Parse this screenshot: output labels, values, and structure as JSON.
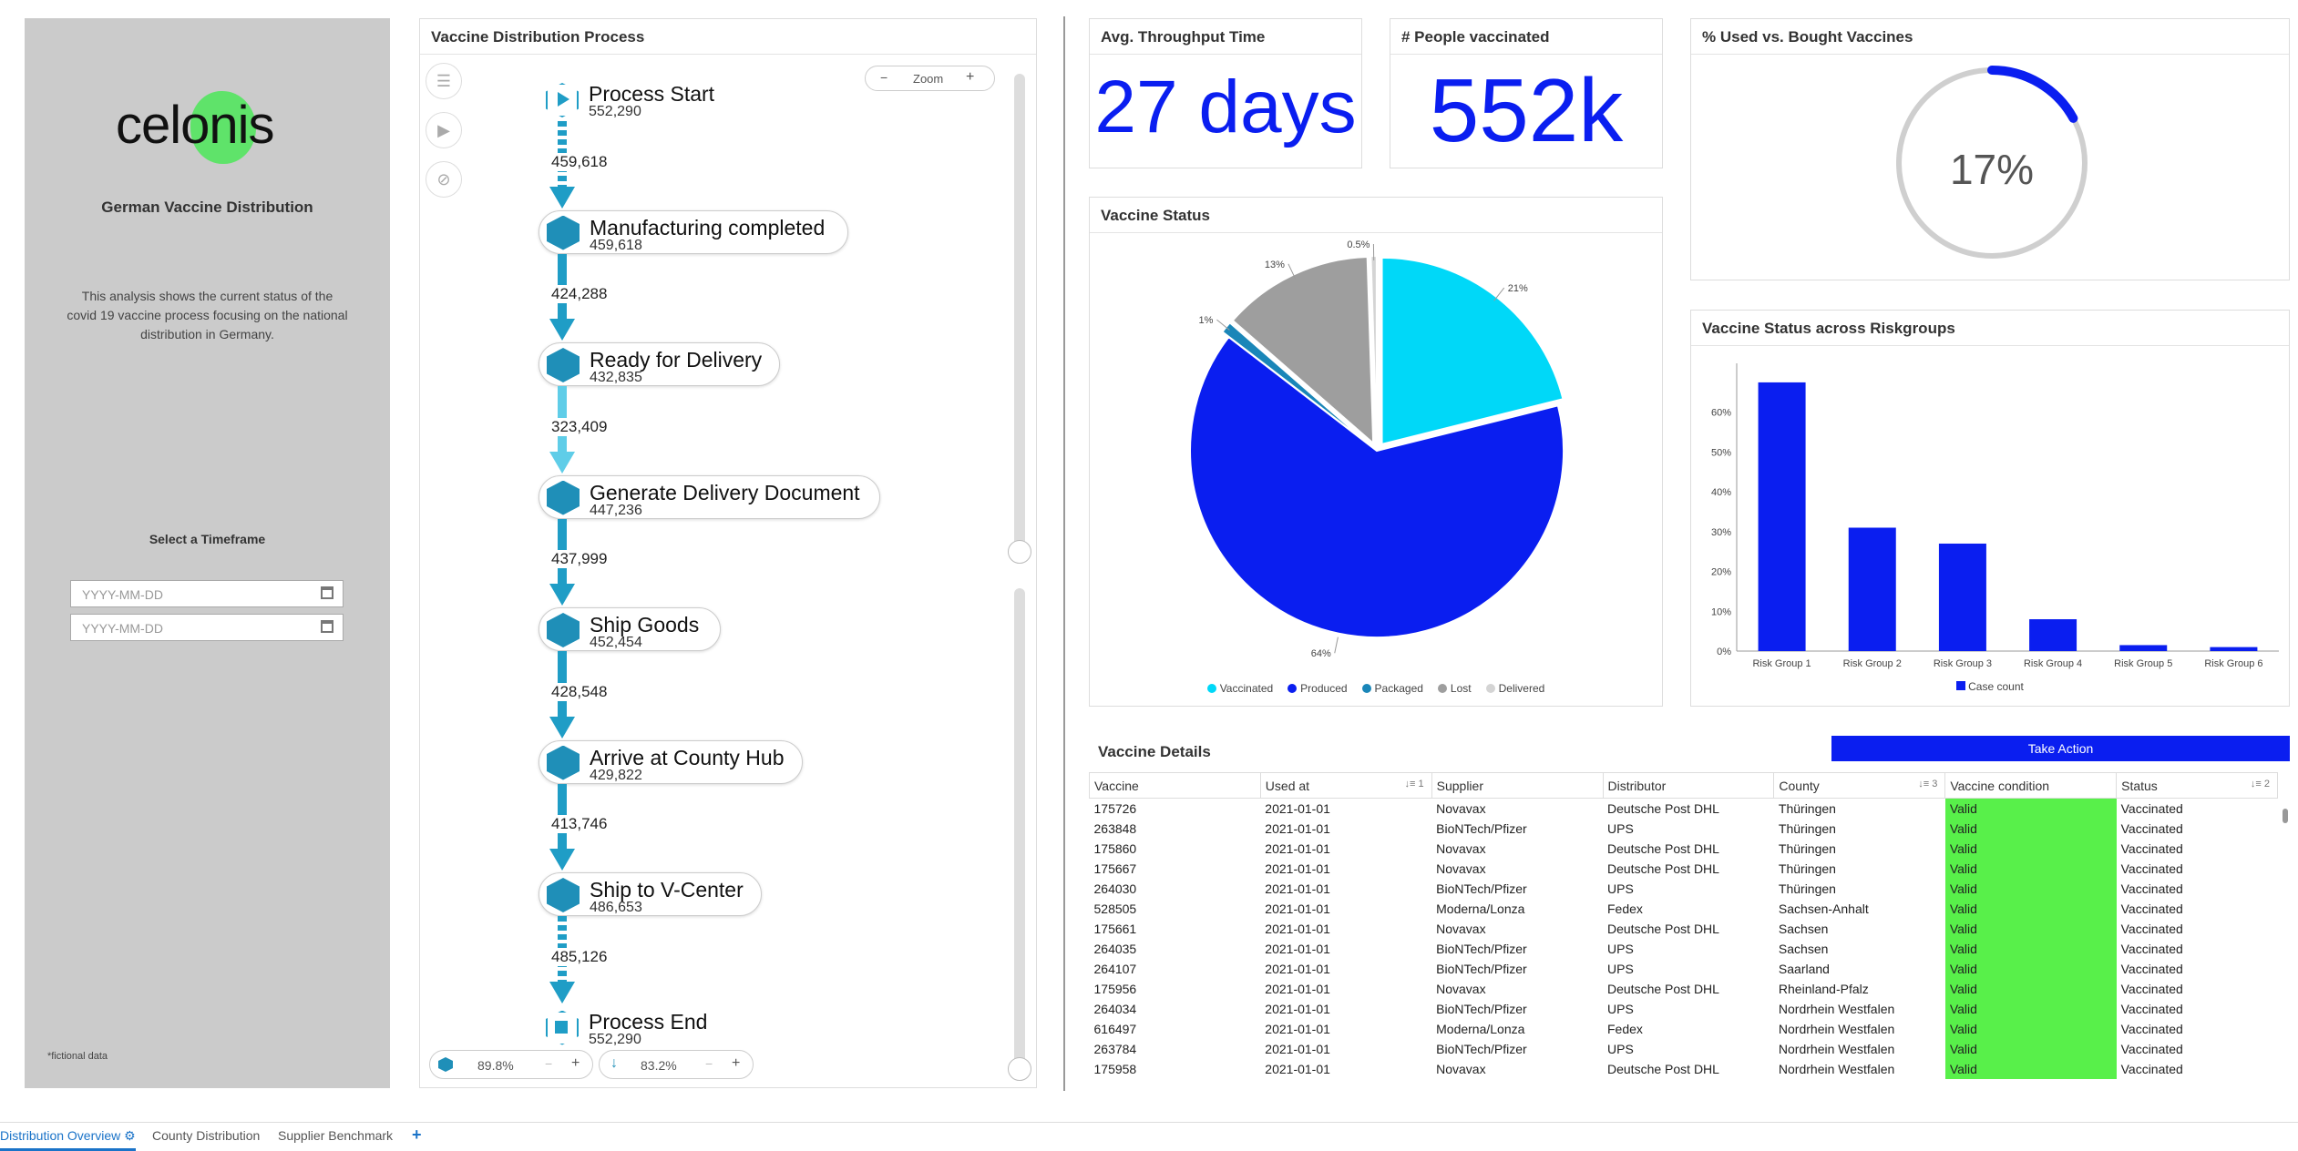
{
  "sidebar": {
    "logo_text": "celonis",
    "title": "German Vaccine Distribution",
    "description": "This analysis shows the current status of the covid 19 vaccine process focusing on the national distribution in Germany.",
    "timeframe_label": "Select a Timeframe",
    "date_from_placeholder": "YYYY-MM-DD",
    "date_to_placeholder": "YYYY-MM-DD",
    "footnote": "*fictional data"
  },
  "process": {
    "title": "Vaccine Distribution Process",
    "zoom_label": "Zoom",
    "zoom_minus": "−",
    "zoom_plus": "+",
    "nodes": [
      {
        "label": "Process Start",
        "count": "552,290"
      },
      {
        "label": "Manufacturing completed",
        "count": "459,618"
      },
      {
        "label": "Ready for Delivery",
        "count": "432,835"
      },
      {
        "label": "Generate Delivery Document",
        "count": "447,236"
      },
      {
        "label": "Ship Goods",
        "count": "452,454"
      },
      {
        "label": "Arrive at County Hub",
        "count": "429,822"
      },
      {
        "label": "Ship to V-Center",
        "count": "486,653"
      },
      {
        "label": "Process End",
        "count": "552,290"
      }
    ],
    "edges": [
      "459,618",
      "424,288",
      "323,409",
      "437,999",
      "428,548",
      "413,746",
      "485,126"
    ],
    "activity_slider": "89.8%",
    "connection_slider": "83.2%"
  },
  "kpis": {
    "throughput_title": "Avg. Throughput Time",
    "throughput_value": "27 days",
    "people_title": "# People vaccinated",
    "people_value": "552k",
    "used_title": "% Used vs. Bought Vaccines",
    "used_value": "17%",
    "used_fraction": 0.17
  },
  "vaccine_status": {
    "title": "Vaccine Status",
    "legend": [
      "Vaccinated",
      "Produced",
      "Packaged",
      "Lost",
      "Delivered"
    ],
    "colors": [
      "#00d8f8",
      "#0a1ef0",
      "#1a86b8",
      "#9e9e9e",
      "#d4d4d4"
    ]
  },
  "risk": {
    "title": "Vaccine Status across Riskgroups",
    "legend": "Case count",
    "bar_color": "#0a1ef0"
  },
  "chart_data": [
    {
      "type": "pie",
      "title": "Vaccine Status",
      "labels": [
        "Vaccinated",
        "Produced",
        "Packaged",
        "Lost",
        "Delivered"
      ],
      "values": [
        21,
        64,
        1,
        13,
        0.5
      ],
      "value_labels": [
        "21%",
        "64%",
        "1%",
        "13%",
        "0.5%"
      ]
    },
    {
      "type": "bar",
      "title": "Vaccine Status across Riskgroups",
      "categories": [
        "Risk Group 1",
        "Risk Group 2",
        "Risk Group 3",
        "Risk Group 4",
        "Risk Group 5",
        "Risk Group 6"
      ],
      "series": [
        {
          "name": "Case count",
          "values": [
            67.5,
            31,
            27,
            8,
            1.5,
            1
          ]
        }
      ],
      "yticks": [
        "0%",
        "10%",
        "20%",
        "30%",
        "40%",
        "50%",
        "60%"
      ],
      "ylim": [
        0,
        70
      ],
      "grid": false,
      "legend": "bottom"
    }
  ],
  "details": {
    "title": "Vaccine Details",
    "action_label": "Take Action",
    "columns": [
      "Vaccine",
      "Used at",
      "Supplier",
      "Distributor",
      "County",
      "Vaccine condition",
      "Status"
    ],
    "sort_badges": [
      "1",
      "3",
      "2"
    ],
    "rows": [
      [
        "175726",
        "2021-01-01",
        "Novavax",
        "Deutsche Post DHL",
        "Thüringen",
        "Valid",
        "Vaccinated"
      ],
      [
        "263848",
        "2021-01-01",
        "BioNTech/Pfizer",
        "UPS",
        "Thüringen",
        "Valid",
        "Vaccinated"
      ],
      [
        "175860",
        "2021-01-01",
        "Novavax",
        "Deutsche Post DHL",
        "Thüringen",
        "Valid",
        "Vaccinated"
      ],
      [
        "175667",
        "2021-01-01",
        "Novavax",
        "Deutsche Post DHL",
        "Thüringen",
        "Valid",
        "Vaccinated"
      ],
      [
        "264030",
        "2021-01-01",
        "BioNTech/Pfizer",
        "UPS",
        "Thüringen",
        "Valid",
        "Vaccinated"
      ],
      [
        "528505",
        "2021-01-01",
        "Moderna/Lonza",
        "Fedex",
        "Sachsen-Anhalt",
        "Valid",
        "Vaccinated"
      ],
      [
        "175661",
        "2021-01-01",
        "Novavax",
        "Deutsche Post DHL",
        "Sachsen",
        "Valid",
        "Vaccinated"
      ],
      [
        "264035",
        "2021-01-01",
        "BioNTech/Pfizer",
        "UPS",
        "Sachsen",
        "Valid",
        "Vaccinated"
      ],
      [
        "264107",
        "2021-01-01",
        "BioNTech/Pfizer",
        "UPS",
        "Saarland",
        "Valid",
        "Vaccinated"
      ],
      [
        "175956",
        "2021-01-01",
        "Novavax",
        "Deutsche Post DHL",
        "Rheinland-Pfalz",
        "Valid",
        "Vaccinated"
      ],
      [
        "264034",
        "2021-01-01",
        "BioNTech/Pfizer",
        "UPS",
        "Nordrhein Westfalen",
        "Valid",
        "Vaccinated"
      ],
      [
        "616497",
        "2021-01-01",
        "Moderna/Lonza",
        "Fedex",
        "Nordrhein Westfalen",
        "Valid",
        "Vaccinated"
      ],
      [
        "263784",
        "2021-01-01",
        "BioNTech/Pfizer",
        "UPS",
        "Nordrhein Westfalen",
        "Valid",
        "Vaccinated"
      ],
      [
        "175958",
        "2021-01-01",
        "Novavax",
        "Deutsche Post DHL",
        "Nordrhein Westfalen",
        "Valid",
        "Vaccinated"
      ]
    ]
  },
  "tabs": [
    "Distribution Overview",
    "County Distribution",
    "Supplier Benchmark",
    "+"
  ]
}
